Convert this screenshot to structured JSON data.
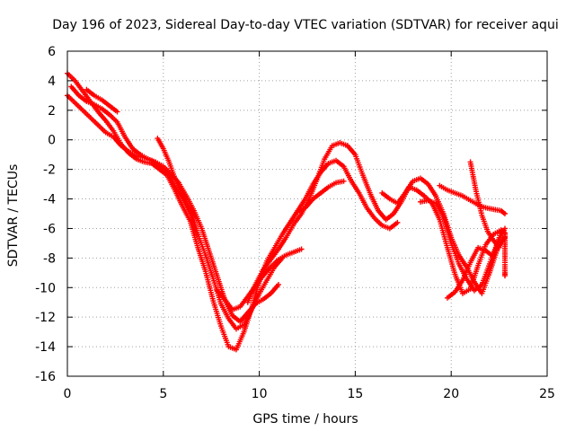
{
  "chart_data": {
    "type": "scatter",
    "title": "Day 196 of 2023, Sidereal Day-to-day VTEC variation (SDTVAR) for receiver aqui",
    "xlabel": "GPS time / hours",
    "ylabel": "SDTVAR / TECUs",
    "xlim": [
      0,
      25
    ],
    "ylim": [
      -16,
      6
    ],
    "xticks": [
      0,
      5,
      10,
      15,
      20,
      25
    ],
    "yticks": [
      -16,
      -14,
      -12,
      -10,
      -8,
      -6,
      -4,
      -2,
      0,
      2,
      4,
      6
    ],
    "grid": true,
    "marker": "plus",
    "color": "#ff0000",
    "series": [
      {
        "name": "track-1",
        "x": [
          0.0,
          0.4,
          0.8,
          1.2,
          1.6,
          2.0,
          2.4,
          2.8,
          3.2,
          3.6,
          4.0,
          4.4,
          4.8,
          5.2,
          5.6,
          6.0,
          6.4,
          6.8,
          7.2,
          7.6,
          8.0,
          8.4,
          8.8,
          9.2,
          9.6,
          10.0,
          10.4,
          10.8,
          11.2,
          11.6,
          12.0,
          12.4,
          12.8,
          13.2,
          13.6,
          14.0,
          14.4,
          14.8,
          15.2,
          15.6,
          16.0,
          16.4,
          16.8,
          17.2
        ],
        "y": [
          4.5,
          4.0,
          3.3,
          2.6,
          1.9,
          1.3,
          0.6,
          -0.3,
          -0.9,
          -1.3,
          -1.5,
          -1.6,
          -2.0,
          -2.4,
          -3.4,
          -4.5,
          -5.5,
          -7.3,
          -8.9,
          -10.9,
          -12.6,
          -14.0,
          -14.2,
          -13.0,
          -11.4,
          -9.6,
          -8.2,
          -7.3,
          -6.4,
          -5.6,
          -4.8,
          -4.0,
          -3.0,
          -2.2,
          -1.6,
          -1.4,
          -1.8,
          -2.8,
          -3.6,
          -4.6,
          -5.3,
          -5.8,
          -6.0,
          -5.6
        ]
      },
      {
        "name": "track-2",
        "x": [
          0.0,
          0.4,
          0.8,
          1.2,
          1.6,
          2.0,
          2.4,
          2.8,
          3.2,
          3.6,
          4.0,
          4.4,
          4.8,
          5.2,
          5.6,
          6.0,
          6.4,
          6.8,
          7.2,
          7.6,
          8.0,
          8.4,
          8.8,
          9.2,
          9.6,
          10.0,
          10.4,
          10.8,
          11.2
        ],
        "y": [
          3.0,
          2.5,
          2.0,
          1.5,
          1.0,
          0.5,
          0.2,
          -0.4,
          -0.8,
          -1.1,
          -1.2,
          -1.4,
          -1.8,
          -2.2,
          -3.1,
          -4.0,
          -5.0,
          -6.4,
          -7.8,
          -9.4,
          -11.1,
          -12.1,
          -12.8,
          -12.5,
          -11.5,
          -10.4,
          -9.5,
          -8.6,
          -8.0
        ]
      },
      {
        "name": "track-3",
        "x": [
          0.2,
          0.6,
          1.0,
          1.4,
          1.8,
          2.2,
          2.6,
          3.0,
          3.4,
          3.8,
          4.2,
          4.6,
          5.0,
          5.4,
          5.8,
          6.2,
          6.6,
          7.0,
          7.4,
          7.8,
          8.2,
          8.6,
          9.0,
          9.4,
          9.8,
          10.2,
          10.6,
          11.0
        ],
        "y": [
          3.6,
          3.0,
          2.6,
          2.4,
          2.1,
          1.7,
          1.2,
          0.2,
          -0.6,
          -1.0,
          -1.3,
          -1.5,
          -1.8,
          -2.3,
          -2.9,
          -3.8,
          -4.8,
          -6.0,
          -7.6,
          -9.2,
          -10.8,
          -11.9,
          -12.3,
          -11.7,
          -11.1,
          -10.8,
          -10.4,
          -9.8
        ]
      },
      {
        "name": "track-4",
        "x": [
          1.0,
          1.4,
          1.8,
          2.2,
          2.6
        ],
        "y": [
          3.4,
          3.0,
          2.7,
          2.3,
          1.9
        ]
      },
      {
        "name": "track-5",
        "x": [
          4.7,
          5.0,
          5.3,
          5.6,
          5.9,
          6.2,
          6.5,
          6.8
        ],
        "y": [
          0.1,
          -0.6,
          -1.5,
          -2.6,
          -3.5,
          -4.2,
          -5.0,
          -6.4
        ]
      },
      {
        "name": "track-6",
        "x": [
          7.8,
          8.2,
          8.6,
          9.0,
          9.4,
          9.8,
          10.2,
          10.6,
          11.0,
          11.4,
          11.8,
          12.2
        ],
        "y": [
          -10.2,
          -10.8,
          -11.5,
          -11.3,
          -10.6,
          -9.9,
          -9.2,
          -8.6,
          -8.1,
          -7.8,
          -7.6,
          -7.4
        ]
      },
      {
        "name": "track-7",
        "x": [
          9.4,
          9.8,
          10.2,
          10.6,
          11.0,
          11.4,
          11.8,
          12.2,
          12.6,
          13.0,
          13.4,
          13.8,
          14.2,
          14.6
        ],
        "y": [
          -11.0,
          -9.8,
          -8.8,
          -8.1,
          -7.4,
          -6.6,
          -5.7,
          -5.0,
          -4.0,
          -2.7,
          -1.3,
          -0.4,
          -0.2,
          -0.4
        ]
      },
      {
        "name": "track-8",
        "x": [
          12.0,
          12.4,
          12.8,
          13.2,
          13.6,
          14.0,
          14.4
        ],
        "y": [
          -4.9,
          -4.6,
          -4.0,
          -3.6,
          -3.2,
          -2.9,
          -2.8
        ]
      },
      {
        "name": "track-9",
        "x": [
          14.6,
          15.0,
          15.4,
          15.8,
          16.2,
          16.6,
          17.0,
          17.4,
          17.8,
          18.2,
          18.6,
          19.0,
          19.4,
          19.8,
          20.2,
          20.6,
          21.0,
          21.4,
          21.8,
          22.2,
          22.6,
          22.8
        ],
        "y": [
          -0.4,
          -1.0,
          -2.4,
          -3.7,
          -4.8,
          -5.4,
          -5.0,
          -4.2,
          -3.2,
          -3.4,
          -3.8,
          -4.3,
          -5.4,
          -7.3,
          -9.1,
          -10.4,
          -10.1,
          -8.5,
          -7.1,
          -6.4,
          -6.1,
          -6.3
        ]
      },
      {
        "name": "track-10",
        "x": [
          16.4,
          16.8,
          17.2,
          17.6,
          18.0,
          18.4,
          18.8,
          19.2,
          19.6,
          20.0,
          20.4,
          20.8,
          21.2,
          21.6,
          22.0,
          22.4,
          22.8
        ],
        "y": [
          -3.6,
          -4.0,
          -4.3,
          -3.6,
          -2.8,
          -2.6,
          -3.0,
          -3.8,
          -5.0,
          -6.6,
          -7.8,
          -8.6,
          -9.6,
          -10.4,
          -9.0,
          -7.4,
          -6.6
        ]
      },
      {
        "name": "track-11",
        "x": [
          18.4,
          18.8,
          19.2,
          19.6,
          20.0,
          20.4,
          20.8,
          21.2,
          21.6,
          22.0,
          22.4,
          22.8
        ],
        "y": [
          -4.2,
          -4.1,
          -4.3,
          -5.2,
          -7.0,
          -8.4,
          -9.4,
          -10.2,
          -9.8,
          -8.4,
          -7.0,
          -6.0
        ]
      },
      {
        "name": "track-12",
        "x": [
          19.4,
          19.8,
          20.2,
          20.6,
          21.0,
          21.4,
          21.8,
          22.2,
          22.6,
          22.8
        ],
        "y": [
          -3.1,
          -3.4,
          -3.6,
          -3.8,
          -4.1,
          -4.4,
          -4.6,
          -4.7,
          -4.8,
          -5.0
        ]
      },
      {
        "name": "track-13",
        "x": [
          19.8,
          20.2,
          20.6,
          21.0,
          21.4,
          21.8,
          22.2,
          22.6
        ],
        "y": [
          -10.7,
          -10.3,
          -9.5,
          -8.3,
          -7.3,
          -7.5,
          -7.9,
          -6.2
        ]
      },
      {
        "name": "track-14",
        "x": [
          21.0,
          21.3,
          21.6,
          21.9,
          22.2,
          22.5
        ],
        "y": [
          -1.5,
          -3.5,
          -5.1,
          -6.2,
          -6.8,
          -7.3
        ]
      },
      {
        "name": "track-15",
        "x": [
          22.8,
          22.8,
          22.8,
          22.8,
          22.8,
          22.8
        ],
        "y": [
          -6.4,
          -7.2,
          -8.0,
          -8.6,
          -9.0,
          -9.2
        ]
      }
    ]
  }
}
